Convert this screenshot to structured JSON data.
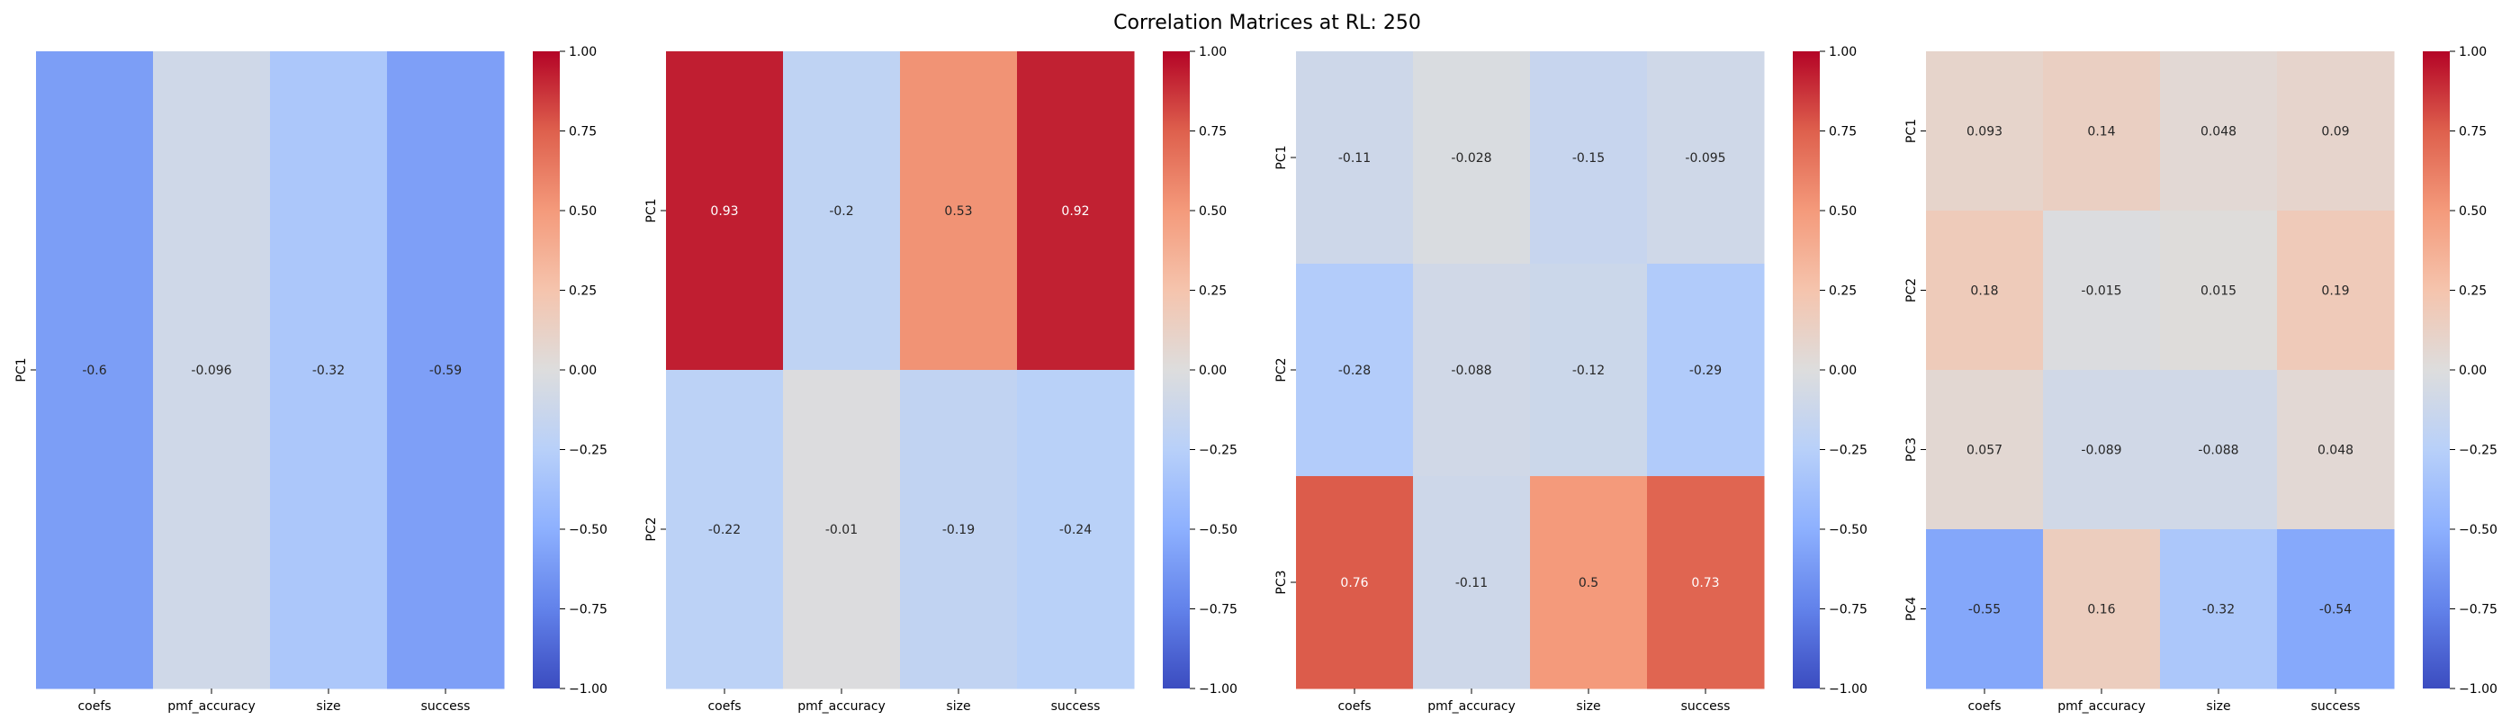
{
  "figure": {
    "title": "Correlation Matrices at RL: 250"
  },
  "chart_data": [
    {
      "type": "heatmap",
      "x_categories": [
        "coefs",
        "pmf_accuracy",
        "size",
        "success"
      ],
      "y_categories": [
        "PC1"
      ],
      "values": [
        [
          -0.6,
          -0.096,
          -0.32,
          -0.59
        ]
      ],
      "value_labels": [
        [
          "-0.6",
          "-0.096",
          "-0.32",
          "-0.59"
        ]
      ],
      "vmin": -1,
      "vmax": 1,
      "colormap": "coolwarm",
      "colorbar_ticks": [
        "1.00",
        "0.75",
        "0.50",
        "0.25",
        "0.00",
        "−0.25",
        "−0.50",
        "−0.75",
        "−1.00"
      ]
    },
    {
      "type": "heatmap",
      "x_categories": [
        "coefs",
        "pmf_accuracy",
        "size",
        "success"
      ],
      "y_categories": [
        "PC1",
        "PC2"
      ],
      "values": [
        [
          0.93,
          -0.2,
          0.53,
          0.92
        ],
        [
          -0.22,
          -0.01,
          -0.19,
          -0.24
        ]
      ],
      "value_labels": [
        [
          "0.93",
          "-0.2",
          "0.53",
          "0.92"
        ],
        [
          "-0.22",
          "-0.01",
          "-0.19",
          "-0.24"
        ]
      ],
      "vmin": -1,
      "vmax": 1,
      "colormap": "coolwarm",
      "colorbar_ticks": [
        "1.00",
        "0.75",
        "0.50",
        "0.25",
        "0.00",
        "−0.25",
        "−0.50",
        "−0.75",
        "−1.00"
      ]
    },
    {
      "type": "heatmap",
      "x_categories": [
        "coefs",
        "pmf_accuracy",
        "size",
        "success"
      ],
      "y_categories": [
        "PC1",
        "PC2",
        "PC3"
      ],
      "values": [
        [
          -0.11,
          -0.028,
          -0.15,
          -0.095
        ],
        [
          -0.28,
          -0.088,
          -0.12,
          -0.29
        ],
        [
          0.76,
          -0.11,
          0.5,
          0.73
        ]
      ],
      "value_labels": [
        [
          "-0.11",
          "-0.028",
          "-0.15",
          "-0.095"
        ],
        [
          "-0.28",
          "-0.088",
          "-0.12",
          "-0.29"
        ],
        [
          "0.76",
          "-0.11",
          "0.5",
          "0.73"
        ]
      ],
      "vmin": -1,
      "vmax": 1,
      "colormap": "coolwarm",
      "colorbar_ticks": [
        "1.00",
        "0.75",
        "0.50",
        "0.25",
        "0.00",
        "−0.25",
        "−0.50",
        "−0.75",
        "−1.00"
      ]
    },
    {
      "type": "heatmap",
      "x_categories": [
        "coefs",
        "pmf_accuracy",
        "size",
        "success"
      ],
      "y_categories": [
        "PC1",
        "PC2",
        "PC3",
        "PC4"
      ],
      "values": [
        [
          0.093,
          0.14,
          0.048,
          0.09
        ],
        [
          0.18,
          -0.015,
          0.015,
          0.19
        ],
        [
          0.057,
          -0.089,
          -0.088,
          0.048
        ],
        [
          -0.55,
          0.16,
          -0.32,
          -0.54
        ]
      ],
      "value_labels": [
        [
          "0.093",
          "0.14",
          "0.048",
          "0.09"
        ],
        [
          "0.18",
          "-0.015",
          "0.015",
          "0.19"
        ],
        [
          "0.057",
          "-0.089",
          "-0.088",
          "0.048"
        ],
        [
          "-0.55",
          "0.16",
          "-0.32",
          "-0.54"
        ]
      ],
      "vmin": -1,
      "vmax": 1,
      "colormap": "coolwarm",
      "colorbar_ticks": [
        "1.00",
        "0.75",
        "0.50",
        "0.25",
        "0.00",
        "−0.25",
        "−0.50",
        "−0.75",
        "−1.00"
      ]
    }
  ]
}
